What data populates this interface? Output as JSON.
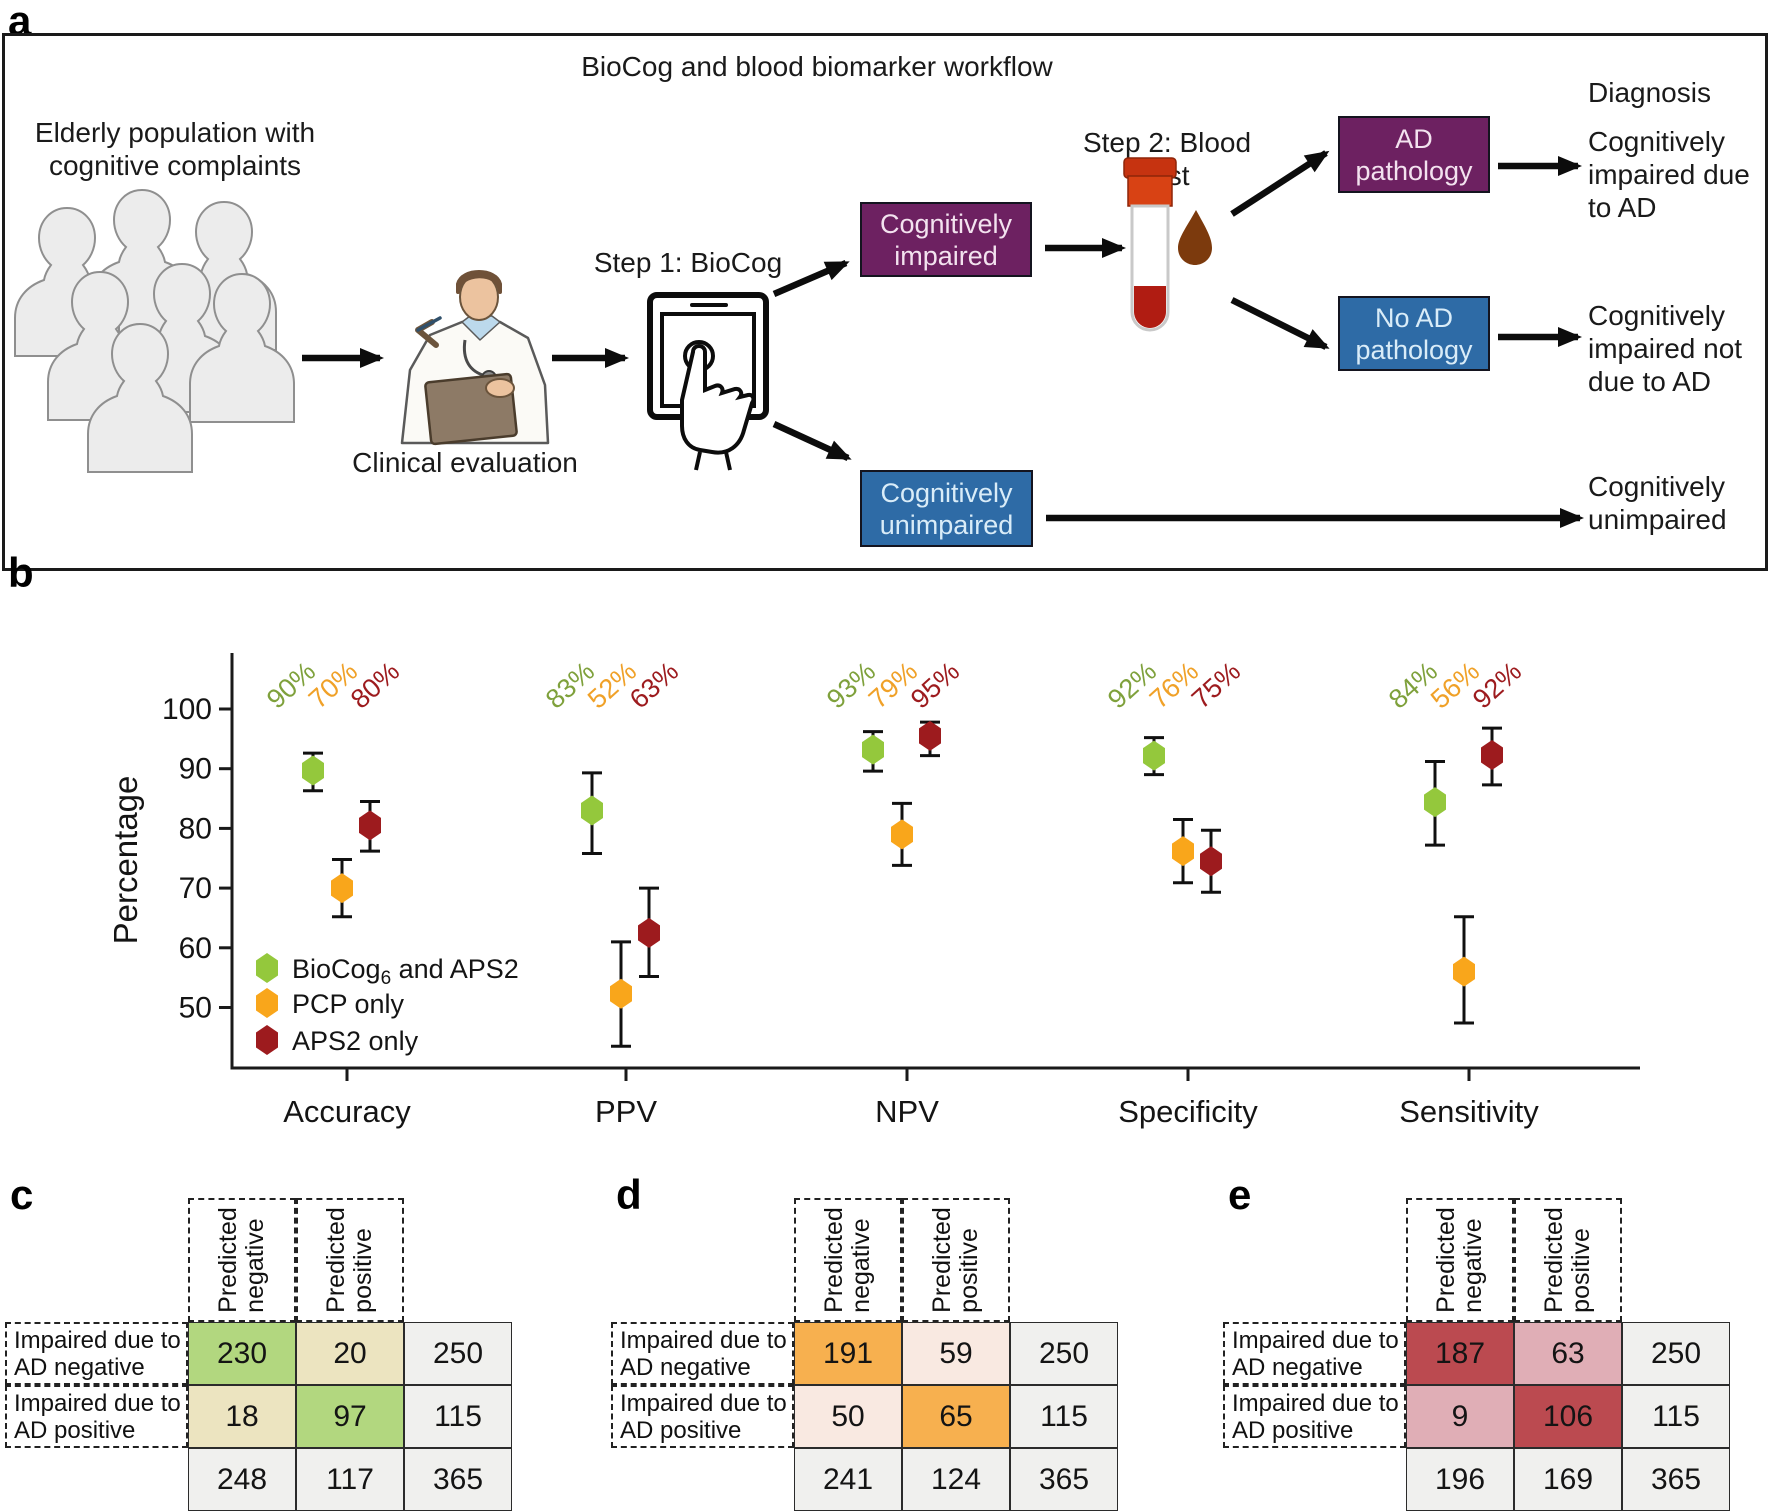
{
  "panel_a": {
    "label": "a",
    "title": "BioCog and blood biomarker workflow",
    "population_label": "Elderly population with\ncognitive complaints",
    "clinical_label": "Clinical evaluation",
    "step1_label": "Step 1: BioCog",
    "step2_label": "Step 2: Blood test",
    "diagnosis_label": "Diagnosis",
    "boxes": {
      "cognitively_impaired": {
        "text": "Cognitively\nimpaired",
        "color": "#6d2161"
      },
      "cognitively_unimpaired": {
        "text": "Cognitively\nunimpaired",
        "color": "#2e6ba6"
      },
      "ad_pathology": {
        "text": "AD\npathology",
        "color": "#6d2161"
      },
      "no_ad_pathology": {
        "text": "No AD\npathology",
        "color": "#2e6ba6"
      }
    },
    "outcomes": {
      "due_to_ad": "Cognitively\nimpaired due\nto AD",
      "not_due_to_ad": "Cognitively\nimpaired not\ndue to AD",
      "unimpaired": "Cognitively\nunimpaired"
    }
  },
  "panel_b": {
    "label": "b"
  },
  "chart_data": {
    "type": "scatter",
    "title": "",
    "xlabel": "",
    "ylabel": "Percentage",
    "categories": [
      "Accuracy",
      "PPV",
      "NPV",
      "Specificity",
      "Sensitivity"
    ],
    "yticks": [
      50,
      60,
      70,
      80,
      90,
      100
    ],
    "ylim": [
      40,
      109
    ],
    "grid": false,
    "legend_position": "lower-left",
    "series": [
      {
        "name": "BioCog6 and APS2",
        "name_pre": "BioCog",
        "name_sub": "6",
        "name_post": " and APS2",
        "color": "#94c83c",
        "label_color": "#7fa13c",
        "values": [
          89.7,
          83.0,
          93.2,
          92.2,
          84.4
        ],
        "ci_low": [
          86.3,
          75.8,
          89.6,
          89.0,
          77.2
        ],
        "ci_high": [
          92.6,
          89.3,
          96.2,
          95.2,
          91.2
        ],
        "point_labels": [
          "90%",
          "83%",
          "93%",
          "92%",
          "84%"
        ]
      },
      {
        "name": "PCP only",
        "name_pre": "PCP only",
        "name_sub": "",
        "name_post": "",
        "color": "#f9a61b",
        "label_color": "#f0a128",
        "values": [
          70.0,
          52.3,
          79.0,
          76.2,
          56.0
        ],
        "ci_low": [
          65.2,
          43.5,
          73.8,
          70.9,
          47.4
        ],
        "ci_high": [
          74.8,
          61.0,
          84.2,
          81.5,
          65.2
        ],
        "point_labels": [
          "70%",
          "52%",
          "79%",
          "76%",
          "56%"
        ]
      },
      {
        "name": "APS2 only",
        "name_pre": "APS2 only",
        "name_sub": "",
        "name_post": "",
        "color": "#9d1b1e",
        "label_color": "#9d1b1e",
        "values": [
          80.5,
          62.5,
          95.5,
          74.5,
          92.3
        ],
        "ci_low": [
          76.2,
          55.2,
          92.2,
          69.3,
          87.3
        ],
        "ci_high": [
          84.5,
          70.0,
          97.8,
          79.7,
          96.8
        ],
        "point_labels": [
          "80%",
          "63%",
          "95%",
          "75%",
          "92%"
        ]
      }
    ]
  },
  "matrices": [
    {
      "label": "c",
      "col_headers": [
        "Predicted\nnegative",
        "Predicted\npositive"
      ],
      "row_headers": [
        "Impaired due to\nAD negative",
        "Impaired due to\nAD positive"
      ],
      "values": [
        [
          230,
          20,
          250
        ],
        [
          18,
          97,
          115
        ],
        [
          248,
          117,
          365
        ]
      ],
      "diag_color": "#b2d77f",
      "off_color": "#ece4c0",
      "margin_color": "#f0f0ee"
    },
    {
      "label": "d",
      "col_headers": [
        "Predicted\nnegative",
        "Predicted\npositive"
      ],
      "row_headers": [
        "Impaired due to\nAD negative",
        "Impaired due to\nAD positive"
      ],
      "values": [
        [
          191,
          59,
          250
        ],
        [
          50,
          65,
          115
        ],
        [
          241,
          124,
          365
        ]
      ],
      "diag_color": "#f7b04f",
      "off_color": "#f9e9e1",
      "margin_color": "#f0f0ee"
    },
    {
      "label": "e",
      "col_headers": [
        "Predicted\nnegative",
        "Predicted\npositive"
      ],
      "row_headers": [
        "Impaired due to\nAD negative",
        "Impaired due to\nAD positive"
      ],
      "values": [
        [
          187,
          63,
          250
        ],
        [
          9,
          106,
          115
        ],
        [
          196,
          169,
          365
        ]
      ],
      "diag_color": "#bb4a50",
      "off_color": "#e0aeb6",
      "margin_color": "#f0f0ee"
    }
  ]
}
